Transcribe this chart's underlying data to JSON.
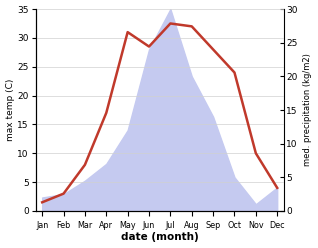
{
  "months": [
    "Jan",
    "Feb",
    "Mar",
    "Apr",
    "May",
    "Jun",
    "Jul",
    "Aug",
    "Sep",
    "Oct",
    "Nov",
    "Dec"
  ],
  "temperature": [
    1.5,
    3.0,
    8.0,
    17.0,
    31.0,
    28.5,
    32.5,
    32.0,
    28.0,
    24.0,
    10.0,
    4.0
  ],
  "precipitation": [
    2.0,
    2.5,
    4.5,
    7.0,
    12.0,
    24.0,
    30.0,
    20.0,
    14.0,
    5.0,
    1.0,
    3.5
  ],
  "temp_color": "#c0392b",
  "precip_fill_color": "#c5caf0",
  "temp_ylim": [
    0,
    35
  ],
  "precip_ylim": [
    0,
    30
  ],
  "xlabel": "date (month)",
  "ylabel_left": "max temp (C)",
  "ylabel_right": "med. precipitation (kg/m2)",
  "bg_color": "#ffffff",
  "grid_color": "#d0d0d0",
  "temp_linewidth": 1.8
}
